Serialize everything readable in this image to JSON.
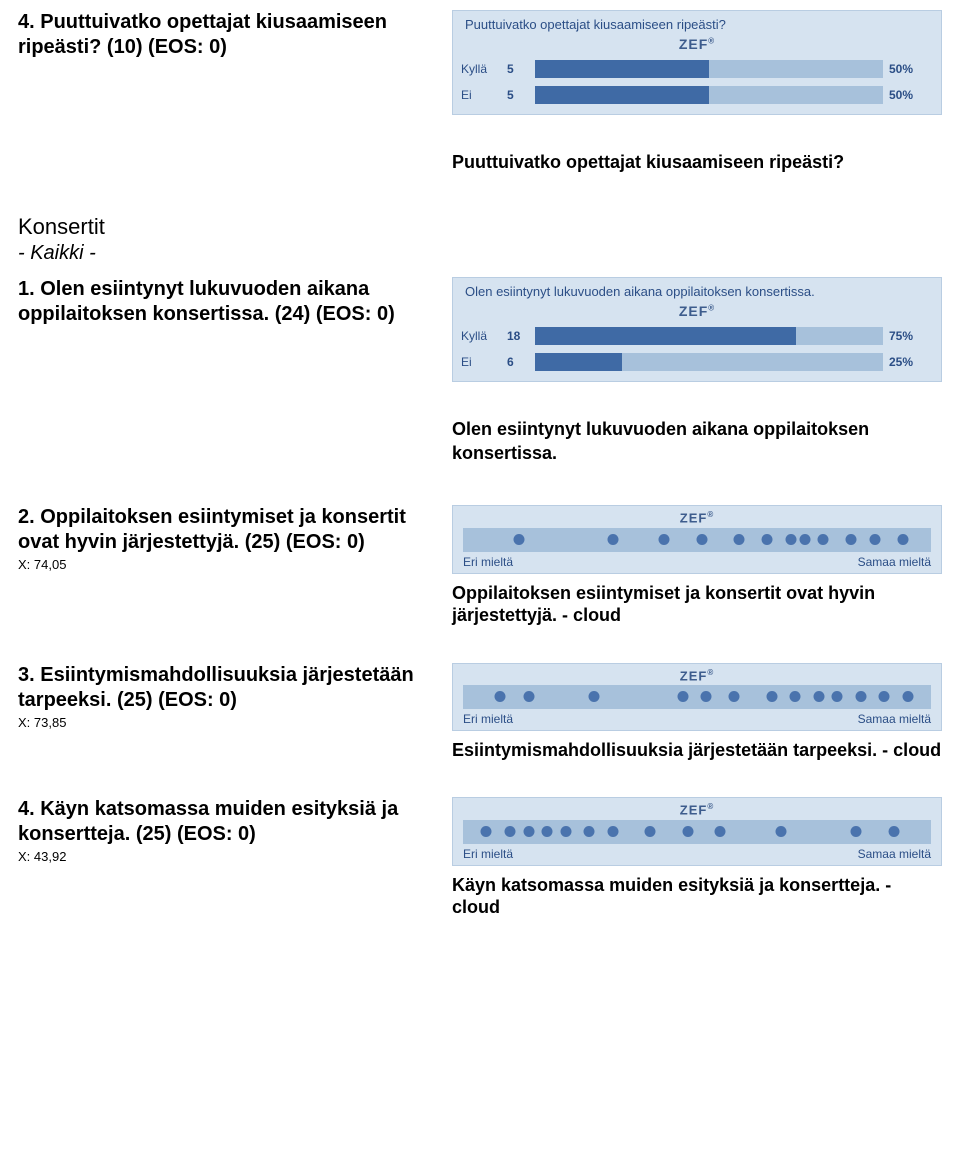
{
  "q4": {
    "heading": "4. Puuttuivatko opettajat kiusaamiseen ripeästi? (10) (EOS: 0)",
    "sub_heading": "Puuttuivatko opettajat kiusaamiseen ripeästi?",
    "chart": {
      "type": "bar",
      "title": "Puuttuivatko opettajat kiusaamiseen ripeästi?",
      "logo": "ZEF",
      "background_color": "#d6e3f0",
      "track_color": "#a7c1db",
      "bar_color": "#3f6aa5",
      "text_color": "#2b4e86",
      "rows": [
        {
          "label": "Kyllä",
          "count": 5,
          "pct": 50,
          "pct_label": "50%"
        },
        {
          "label": "Ei",
          "count": 5,
          "pct": 50,
          "pct_label": "50%"
        }
      ]
    }
  },
  "section": {
    "title": "Konsertit",
    "subtitle": "- Kaikki -"
  },
  "q1": {
    "heading": "1. Olen esiintynyt lukuvuoden aikana oppilaitoksen konsertissa. (24) (EOS: 0)",
    "sub_heading": "Olen esiintynyt lukuvuoden aikana oppilaitoksen konsertissa.",
    "chart": {
      "type": "bar",
      "title": "Olen esiintynyt lukuvuoden aikana oppilaitoksen konsertissa.",
      "logo": "ZEF",
      "background_color": "#d6e3f0",
      "track_color": "#a7c1db",
      "bar_color": "#3f6aa5",
      "text_color": "#2b4e86",
      "rows": [
        {
          "label": "Kyllä",
          "count": 18,
          "pct": 75,
          "pct_label": "75%"
        },
        {
          "label": "Ei",
          "count": 6,
          "pct": 25,
          "pct_label": "25%"
        }
      ]
    }
  },
  "q2": {
    "heading": "2. Oppilaitoksen esiintymiset ja konsertit ovat hyvin järjestettyjä. (25) (EOS: 0)",
    "xval": "X: 74,05",
    "cloud": {
      "type": "scatter",
      "logo": "ZEF",
      "background_color": "#d6e3f0",
      "strip_color": "#a7c1db",
      "dot_color": "#4a73ad",
      "left_label": "Eri mieltä",
      "right_label": "Samaa mieltä",
      "xlim": [
        0,
        100
      ],
      "dots": [
        12,
        32,
        43,
        51,
        59,
        65,
        70,
        73,
        77,
        83,
        88,
        94
      ]
    },
    "caption": "Oppilaitoksen esiintymiset ja konsertit ovat hyvin järjestettyjä. - cloud"
  },
  "q3": {
    "heading": "3. Esiintymismahdollisuuksia järjestetään tarpeeksi. (25) (EOS: 0)",
    "xval": "X: 73,85",
    "cloud": {
      "type": "scatter",
      "logo": "ZEF",
      "background_color": "#d6e3f0",
      "strip_color": "#a7c1db",
      "dot_color": "#4a73ad",
      "left_label": "Eri mieltä",
      "right_label": "Samaa mieltä",
      "xlim": [
        0,
        100
      ],
      "dots": [
        8,
        14,
        28,
        47,
        52,
        58,
        66,
        71,
        76,
        80,
        85,
        90,
        95
      ]
    },
    "caption": "Esiintymismahdollisuuksia järjestetään tarpeeksi. - cloud"
  },
  "q4b": {
    "heading": "4. Käyn katsomassa muiden esityksiä ja konsertteja. (25) (EOS: 0)",
    "xval": "X: 43,92",
    "cloud": {
      "type": "scatter",
      "logo": "ZEF",
      "background_color": "#d6e3f0",
      "strip_color": "#a7c1db",
      "dot_color": "#4a73ad",
      "left_label": "Eri mieltä",
      "right_label": "Samaa mieltä",
      "xlim": [
        0,
        100
      ],
      "dots": [
        5,
        10,
        14,
        18,
        22,
        27,
        32,
        40,
        48,
        55,
        68,
        84,
        92
      ]
    },
    "caption": "Käyn katsomassa muiden esityksiä ja konsertteja. - cloud"
  }
}
